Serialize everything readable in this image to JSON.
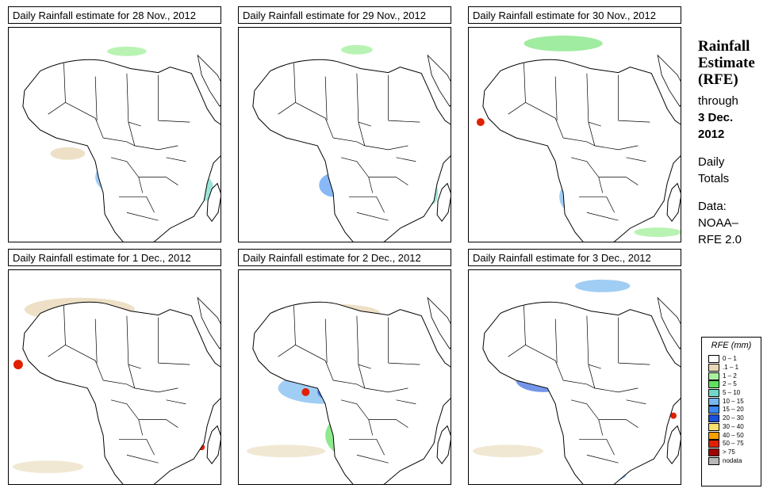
{
  "panels": [
    {
      "title": "Daily Rainfall estimate for  28 Nov., 2012"
    },
    {
      "title": "Daily Rainfall estimate for  29 Nov., 2012"
    },
    {
      "title": "Daily Rainfall estimate for  30 Nov., 2012"
    },
    {
      "title": "Daily Rainfall estimate for  1 Dec., 2012"
    },
    {
      "title": "Daily Rainfall estimate for  2 Dec., 2012"
    },
    {
      "title": "Daily Rainfall estimate for  3 Dec., 2012"
    }
  ],
  "side": {
    "line1": "Rainfall",
    "line2": "Estimate",
    "line3": "(RFE)",
    "through": "through",
    "date1": "3 Dec.",
    "date2": "2012",
    "daily1": "Daily",
    "daily2": "Totals",
    "data1": "Data:",
    "data2": "NOAA–",
    "data3": "RFE 2.0"
  },
  "legend": {
    "title": "RFE (mm)",
    "items": [
      {
        "label": "0 – 1",
        "color": "#ffffff"
      },
      {
        "label": ".1 – 1",
        "color": "#e8d8b8"
      },
      {
        "label": "1 – 2",
        "color": "#a8f0a0"
      },
      {
        "label": "2 – 5",
        "color": "#60e060"
      },
      {
        "label": "5 – 10",
        "color": "#70d8c8"
      },
      {
        "label": "10 – 15",
        "color": "#78b8f0"
      },
      {
        "label": "15 – 20",
        "color": "#3888f0"
      },
      {
        "label": "20 – 30",
        "color": "#1850d8"
      },
      {
        "label": "30 – 40",
        "color": "#f8e070"
      },
      {
        "label": "40 – 50",
        "color": "#f8a000"
      },
      {
        "label": "50 – 75",
        "color": "#e02000"
      },
      {
        "label": "> 75",
        "color": "#a00000"
      },
      {
        "label": "nodata",
        "color": "#b8b8b8"
      }
    ]
  }
}
